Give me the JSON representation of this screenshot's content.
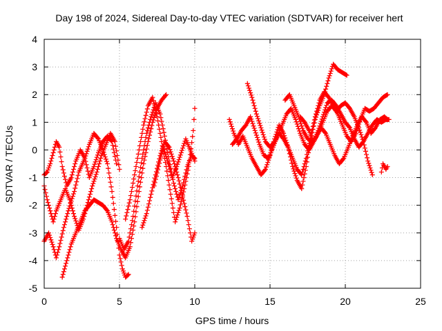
{
  "chart_data": {
    "type": "scatter",
    "title": "Day 198 of 2024, Sidereal Day-to-day VTEC variation (SDTVAR) for receiver hert",
    "xlabel": "GPS time / hours",
    "ylabel": "SDTVAR / TECUs",
    "xlim": [
      0,
      25
    ],
    "ylim": [
      -5,
      4
    ],
    "xticks": [
      "0",
      "5",
      "10",
      "15",
      "20",
      "25"
    ],
    "yticks": [
      "-5",
      "-4",
      "-3",
      "-2",
      "-1",
      "0",
      "1",
      "2",
      "3",
      "4"
    ],
    "grid": true,
    "marker": "+",
    "color": "#ff0000",
    "series": [
      {
        "name": "track-1",
        "x": [
          0.0,
          0.3,
          0.6,
          0.8,
          1.0,
          1.3,
          1.6,
          2.0,
          2.3,
          2.7,
          3.0,
          3.3,
          3.6,
          3.9,
          4.2,
          4.5,
          4.8,
          5.0,
          5.2,
          5.4,
          5.6
        ],
        "y": [
          -3.3,
          -3.0,
          -3.5,
          -3.9,
          -3.5,
          -2.8,
          -2.2,
          -1.5,
          -0.8,
          -0.3,
          0.2,
          0.6,
          0.4,
          0.0,
          -0.5,
          -1.5,
          -2.8,
          -3.8,
          -4.3,
          -4.6,
          -4.5
        ]
      },
      {
        "name": "track-2",
        "x": [
          0.0,
          0.2,
          0.4,
          0.6,
          0.8,
          1.0,
          1.2,
          1.5,
          1.8,
          2.1,
          2.4,
          2.7,
          3.0,
          3.3,
          3.6,
          3.9,
          4.2,
          4.5,
          4.8
        ],
        "y": [
          -0.9,
          -0.8,
          -0.5,
          -0.1,
          0.3,
          0.1,
          -0.6,
          -1.3,
          -1.0,
          -0.4,
          0.0,
          -0.3,
          -1.0,
          -0.6,
          -0.1,
          0.3,
          0.5,
          0.3,
          -0.5
        ]
      },
      {
        "name": "track-3",
        "x": [
          0.0,
          0.2,
          0.4,
          0.6,
          0.8,
          1.1,
          1.4,
          1.7,
          2.0,
          2.3,
          2.6,
          2.9,
          3.2,
          3.5,
          3.8,
          4.1,
          4.4,
          4.7,
          5.0
        ],
        "y": [
          -1.3,
          -1.8,
          -2.2,
          -2.6,
          -2.2,
          -1.8,
          -1.4,
          -1.8,
          -2.4,
          -2.9,
          -2.5,
          -1.9,
          -1.3,
          -0.8,
          -0.2,
          0.2,
          0.6,
          0.3,
          -0.7
        ]
      },
      {
        "name": "track-4",
        "x": [
          1.2,
          1.5,
          1.8,
          2.1,
          2.4,
          2.7,
          3.0,
          3.3,
          3.6,
          3.9,
          4.2,
          4.5,
          4.8,
          5.1,
          5.4,
          5.7,
          6.0,
          6.3,
          6.6,
          6.9,
          7.2,
          7.5,
          7.8,
          8.1
        ],
        "y": [
          -4.6,
          -4.0,
          -3.4,
          -3.0,
          -2.6,
          -2.2,
          -2.0,
          -1.8,
          -1.9,
          -2.0,
          -2.2,
          -2.6,
          -3.2,
          -3.6,
          -3.9,
          -3.5,
          -2.6,
          -1.5,
          -0.5,
          0.3,
          1.0,
          1.5,
          1.8,
          2.0
        ]
      },
      {
        "name": "track-5",
        "x": [
          5.0,
          5.3,
          5.6,
          5.9,
          6.2,
          6.5,
          6.8,
          7.1,
          7.4,
          7.7,
          8.0,
          8.3,
          8.6,
          8.9,
          9.2,
          9.5,
          9.8,
          10.0
        ],
        "y": [
          -3.2,
          -3.6,
          -3.3,
          -2.4,
          -1.3,
          -0.3,
          0.6,
          1.2,
          1.7,
          1.3,
          0.5,
          -0.4,
          -1.2,
          -1.8,
          -1.3,
          -0.6,
          -0.2,
          -0.3
        ]
      },
      {
        "name": "track-6",
        "x": [
          5.4,
          5.7,
          6.0,
          6.3,
          6.6,
          6.9,
          7.2,
          7.5,
          7.8,
          8.1,
          8.4,
          8.7,
          9.0,
          9.3,
          9.6,
          9.9,
          10.0
        ],
        "y": [
          -2.5,
          -1.8,
          -0.9,
          0.0,
          0.9,
          1.6,
          1.9,
          1.2,
          0.3,
          -0.6,
          -1.6,
          -2.6,
          -2.1,
          -1.4,
          -0.6,
          0.7,
          1.5
        ]
      },
      {
        "name": "track-7",
        "x": [
          6.5,
          6.8,
          7.1,
          7.4,
          7.7,
          8.0,
          8.3,
          8.6,
          8.9,
          9.2,
          9.5,
          9.8,
          10.0
        ],
        "y": [
          -2.8,
          -2.3,
          -1.6,
          -0.9,
          -0.2,
          0.3,
          0.1,
          -0.4,
          -1.0,
          -1.7,
          -2.4,
          -3.3,
          -3.0
        ]
      },
      {
        "name": "track-8",
        "x": [
          7.3,
          7.6,
          7.9,
          8.2,
          8.5,
          8.8,
          9.1,
          9.4,
          9.7,
          10.0
        ],
        "y": [
          -1.3,
          -0.6,
          0.1,
          -0.4,
          -1.0,
          -0.6,
          -0.1,
          0.4,
          0.0,
          -0.4
        ]
      },
      {
        "name": "track-9",
        "x": [
          12.3,
          12.6,
          12.9,
          13.2,
          13.5,
          13.8,
          14.1,
          14.4,
          14.7,
          15.0,
          15.3,
          15.6,
          15.9,
          16.2,
          16.5,
          16.8,
          17.1,
          17.4,
          17.7,
          18.0,
          18.3,
          18.6,
          18.9,
          19.2,
          19.5,
          19.8,
          20.1
        ],
        "y": [
          1.1,
          0.6,
          0.2,
          0.5,
          0.1,
          -0.3,
          -0.6,
          -0.9,
          -0.7,
          -0.2,
          0.4,
          0.9,
          0.6,
          0.1,
          -0.6,
          -1.1,
          -1.4,
          -0.6,
          0.4,
          1.1,
          1.6,
          2.0,
          2.6,
          3.1,
          2.9,
          2.8,
          2.7
        ]
      },
      {
        "name": "track-10",
        "x": [
          12.5,
          12.8,
          13.1,
          13.4,
          13.7,
          14.0,
          14.3,
          14.6,
          14.9,
          15.2,
          15.5,
          15.8,
          16.1,
          16.4,
          16.7,
          17.0,
          17.3,
          17.6,
          17.9,
          18.2,
          18.5,
          18.8,
          19.1,
          19.4,
          19.7,
          20.0,
          20.3,
          20.6,
          20.9,
          21.2,
          21.5,
          21.8
        ],
        "y": [
          0.2,
          0.4,
          0.7,
          0.9,
          1.2,
          0.7,
          0.2,
          -0.2,
          -0.3,
          0.1,
          0.5,
          0.9,
          1.3,
          1.5,
          1.1,
          0.6,
          0.2,
          0.0,
          0.3,
          0.6,
          1.0,
          1.4,
          1.6,
          1.4,
          1.6,
          1.7,
          1.5,
          1.2,
          0.8,
          0.3,
          -0.4,
          -0.9
        ]
      },
      {
        "name": "track-11",
        "x": [
          13.5,
          13.8,
          14.1,
          14.4,
          14.7,
          15.0,
          15.3,
          15.6,
          15.9,
          16.2,
          16.5,
          16.8,
          17.1,
          17.4,
          17.7,
          18.0,
          18.3,
          18.6,
          18.9,
          19.2,
          19.5,
          19.8,
          20.1,
          20.4,
          20.7,
          21.0,
          21.3,
          21.6,
          21.9,
          22.2,
          22.5,
          22.8
        ],
        "y": [
          2.4,
          1.9,
          1.3,
          0.8,
          0.3,
          0.1,
          0.3,
          0.6,
          0.4,
          0.1,
          -0.3,
          -0.7,
          -0.9,
          -0.3,
          0.5,
          1.2,
          1.8,
          2.1,
          1.9,
          1.6,
          1.3,
          0.9,
          0.5,
          0.3,
          0.6,
          1.1,
          1.5,
          1.4,
          1.5,
          1.7,
          1.9,
          2.0
        ]
      },
      {
        "name": "track-12",
        "x": [
          16.0,
          16.3,
          16.6,
          16.9,
          17.2,
          17.5,
          17.8,
          18.1,
          18.4,
          18.7,
          19.0,
          19.3,
          19.6,
          19.9,
          20.2,
          20.5,
          20.8,
          21.1,
          21.4,
          21.7,
          22.0,
          22.3,
          22.6,
          22.8
        ],
        "y": [
          1.8,
          2.0,
          1.6,
          1.2,
          0.7,
          0.4,
          0.3,
          0.5,
          0.8,
          0.6,
          0.2,
          -0.2,
          -0.5,
          -0.3,
          0.1,
          0.5,
          0.9,
          1.2,
          1.0,
          0.6,
          0.8,
          1.1,
          1.2,
          1.1
        ]
      },
      {
        "name": "track-13",
        "x": [
          17.0,
          17.3,
          17.6,
          17.9,
          18.2,
          18.5,
          18.8,
          19.1,
          19.4,
          19.7,
          20.0,
          20.3,
          20.6,
          20.9,
          21.2,
          21.5,
          21.8,
          22.1,
          22.4,
          22.7,
          22.9
        ],
        "y": [
          1.2,
          1.0,
          0.7,
          0.3,
          0.7,
          1.2,
          1.7,
          1.8,
          1.6,
          1.3,
          1.0,
          0.8,
          0.4,
          0.1,
          0.3,
          0.6,
          0.9,
          1.1,
          1.0,
          1.1,
          1.1
        ]
      },
      {
        "name": "track-14",
        "x": [
          22.4,
          22.5,
          22.6,
          22.7,
          22.8
        ],
        "y": [
          -0.8,
          -0.5,
          -0.6,
          -0.7,
          -0.6
        ]
      }
    ]
  }
}
